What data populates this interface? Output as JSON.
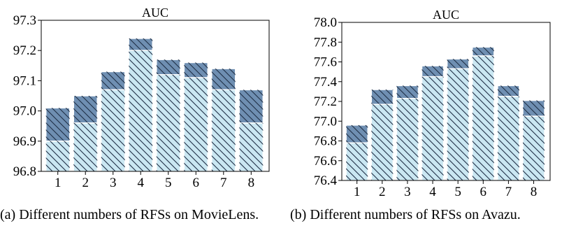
{
  "colors": {
    "bar_base": "#cae7f2",
    "bar_top": "#6f8fb2",
    "hatch": "#1f2f45",
    "bar_stroke": "#ffffff"
  },
  "chart_data": [
    {
      "type": "bar",
      "title": "AUC",
      "xlabel": "",
      "ylabel": "",
      "categories": [
        "1",
        "2",
        "3",
        "4",
        "5",
        "6",
        "7",
        "8"
      ],
      "series": [
        {
          "values": [
            96.9,
            96.96,
            97.07,
            97.2,
            97.12,
            97.11,
            97.07,
            96.96
          ]
        },
        {
          "values": [
            97.01,
            97.05,
            97.13,
            97.24,
            97.17,
            97.16,
            97.14,
            97.07
          ]
        }
      ],
      "ylim": [
        96.8,
        97.3
      ],
      "yticks": [
        96.8,
        96.9,
        97.0,
        97.1,
        97.2,
        97.3
      ],
      "ytick_labels": [
        "96.8",
        "96.9",
        "97.0",
        "97.1",
        "97.2",
        "97.3"
      ],
      "stacked_overlay": true,
      "hatch": "\\\\",
      "grid": false,
      "caption": "(a) Different numbers of RFSs on MovieLens."
    },
    {
      "type": "bar",
      "title": "AUC",
      "xlabel": "",
      "ylabel": "",
      "categories": [
        "1",
        "2",
        "3",
        "4",
        "5",
        "6",
        "7",
        "8"
      ],
      "series": [
        {
          "values": [
            76.78,
            77.17,
            77.23,
            77.45,
            77.53,
            77.66,
            77.25,
            77.05
          ]
        },
        {
          "values": [
            76.96,
            77.32,
            77.36,
            77.56,
            77.63,
            77.75,
            77.36,
            77.21
          ]
        }
      ],
      "ylim": [
        76.4,
        78.0
      ],
      "yticks": [
        76.4,
        76.6,
        76.8,
        77.0,
        77.2,
        77.4,
        77.6,
        77.8,
        78.0
      ],
      "ytick_labels": [
        "76.4",
        "76.6",
        "76.8",
        "77.0",
        "77.2",
        "77.4",
        "77.6",
        "77.8",
        "78.0"
      ],
      "stacked_overlay": true,
      "hatch": "\\\\",
      "grid": false,
      "caption": "(b) Different numbers of RFSs on Avazu."
    }
  ]
}
